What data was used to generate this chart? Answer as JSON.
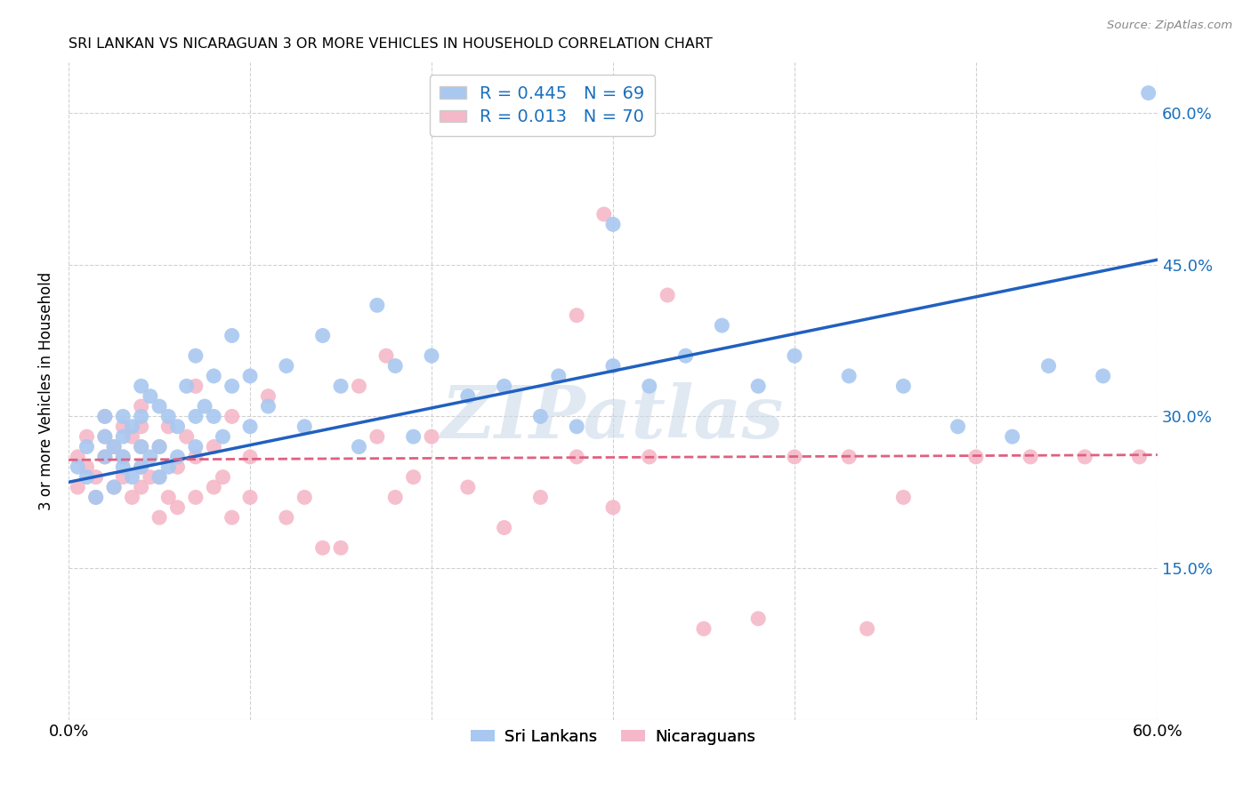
{
  "title": "SRI LANKAN VS NICARAGUAN 3 OR MORE VEHICLES IN HOUSEHOLD CORRELATION CHART",
  "source": "Source: ZipAtlas.com",
  "ylabel": "3 or more Vehicles in Household",
  "xmin": 0.0,
  "xmax": 0.6,
  "ymin": 0.0,
  "ymax": 0.65,
  "yticks": [
    0.0,
    0.15,
    0.3,
    0.45,
    0.6
  ],
  "ytick_labels": [
    "",
    "15.0%",
    "30.0%",
    "45.0%",
    "60.0%"
  ],
  "xticks": [
    0.0,
    0.1,
    0.2,
    0.3,
    0.4,
    0.5,
    0.6
  ],
  "xtick_labels": [
    "0.0%",
    "",
    "",
    "",
    "",
    "",
    "60.0%"
  ],
  "sri_lankan_color": "#a8c8f0",
  "nicaraguan_color": "#f5b8c8",
  "sri_lankan_line_color": "#2060c0",
  "nicaraguan_line_color": "#e06080",
  "sri_lankan_R": 0.445,
  "sri_lankan_N": 69,
  "nicaraguan_R": 0.013,
  "nicaraguan_N": 70,
  "legend_label_1": "Sri Lankans",
  "legend_label_2": "Nicaraguans",
  "watermark": "ZIPatlas",
  "sl_line_x0": 0.0,
  "sl_line_y0": 0.235,
  "sl_line_x1": 0.6,
  "sl_line_y1": 0.455,
  "ni_line_x0": 0.0,
  "ni_line_y0": 0.257,
  "ni_line_x1": 0.6,
  "ni_line_y1": 0.262,
  "sri_lankans_x": [
    0.005,
    0.01,
    0.01,
    0.015,
    0.02,
    0.02,
    0.02,
    0.025,
    0.025,
    0.03,
    0.03,
    0.03,
    0.03,
    0.035,
    0.035,
    0.04,
    0.04,
    0.04,
    0.04,
    0.045,
    0.045,
    0.05,
    0.05,
    0.05,
    0.055,
    0.055,
    0.06,
    0.06,
    0.065,
    0.07,
    0.07,
    0.07,
    0.075,
    0.08,
    0.08,
    0.085,
    0.09,
    0.09,
    0.1,
    0.1,
    0.11,
    0.12,
    0.13,
    0.14,
    0.15,
    0.16,
    0.17,
    0.18,
    0.19,
    0.2,
    0.22,
    0.24,
    0.26,
    0.27,
    0.28,
    0.3,
    0.32,
    0.34,
    0.36,
    0.38,
    0.4,
    0.43,
    0.46,
    0.49,
    0.52,
    0.54,
    0.57,
    0.595,
    0.3
  ],
  "sri_lankans_y": [
    0.25,
    0.24,
    0.27,
    0.22,
    0.26,
    0.28,
    0.3,
    0.23,
    0.27,
    0.25,
    0.26,
    0.28,
    0.3,
    0.24,
    0.29,
    0.25,
    0.27,
    0.3,
    0.33,
    0.26,
    0.32,
    0.24,
    0.27,
    0.31,
    0.25,
    0.3,
    0.26,
    0.29,
    0.33,
    0.27,
    0.3,
    0.36,
    0.31,
    0.3,
    0.34,
    0.28,
    0.33,
    0.38,
    0.29,
    0.34,
    0.31,
    0.35,
    0.29,
    0.38,
    0.33,
    0.27,
    0.41,
    0.35,
    0.28,
    0.36,
    0.32,
    0.33,
    0.3,
    0.34,
    0.29,
    0.35,
    0.33,
    0.36,
    0.39,
    0.33,
    0.36,
    0.34,
    0.33,
    0.29,
    0.28,
    0.35,
    0.34,
    0.62,
    0.49
  ],
  "nicaraguans_x": [
    0.005,
    0.005,
    0.01,
    0.01,
    0.015,
    0.015,
    0.02,
    0.02,
    0.02,
    0.025,
    0.025,
    0.03,
    0.03,
    0.03,
    0.035,
    0.035,
    0.04,
    0.04,
    0.04,
    0.04,
    0.04,
    0.045,
    0.05,
    0.05,
    0.05,
    0.055,
    0.055,
    0.06,
    0.06,
    0.065,
    0.07,
    0.07,
    0.07,
    0.08,
    0.08,
    0.085,
    0.09,
    0.09,
    0.1,
    0.1,
    0.11,
    0.12,
    0.13,
    0.14,
    0.15,
    0.16,
    0.17,
    0.18,
    0.19,
    0.2,
    0.22,
    0.24,
    0.26,
    0.28,
    0.3,
    0.32,
    0.35,
    0.38,
    0.4,
    0.43,
    0.46,
    0.5,
    0.53,
    0.56,
    0.59,
    0.295,
    0.28,
    0.33,
    0.175,
    0.44
  ],
  "nicaraguans_y": [
    0.26,
    0.23,
    0.25,
    0.28,
    0.22,
    0.24,
    0.26,
    0.28,
    0.3,
    0.23,
    0.27,
    0.24,
    0.26,
    0.29,
    0.22,
    0.28,
    0.23,
    0.25,
    0.27,
    0.29,
    0.31,
    0.24,
    0.2,
    0.24,
    0.27,
    0.22,
    0.29,
    0.21,
    0.25,
    0.28,
    0.22,
    0.26,
    0.33,
    0.23,
    0.27,
    0.24,
    0.2,
    0.3,
    0.22,
    0.26,
    0.32,
    0.2,
    0.22,
    0.17,
    0.17,
    0.33,
    0.28,
    0.22,
    0.24,
    0.28,
    0.23,
    0.19,
    0.22,
    0.26,
    0.21,
    0.26,
    0.09,
    0.1,
    0.26,
    0.26,
    0.22,
    0.26,
    0.26,
    0.26,
    0.26,
    0.5,
    0.4,
    0.42,
    0.36,
    0.09
  ]
}
